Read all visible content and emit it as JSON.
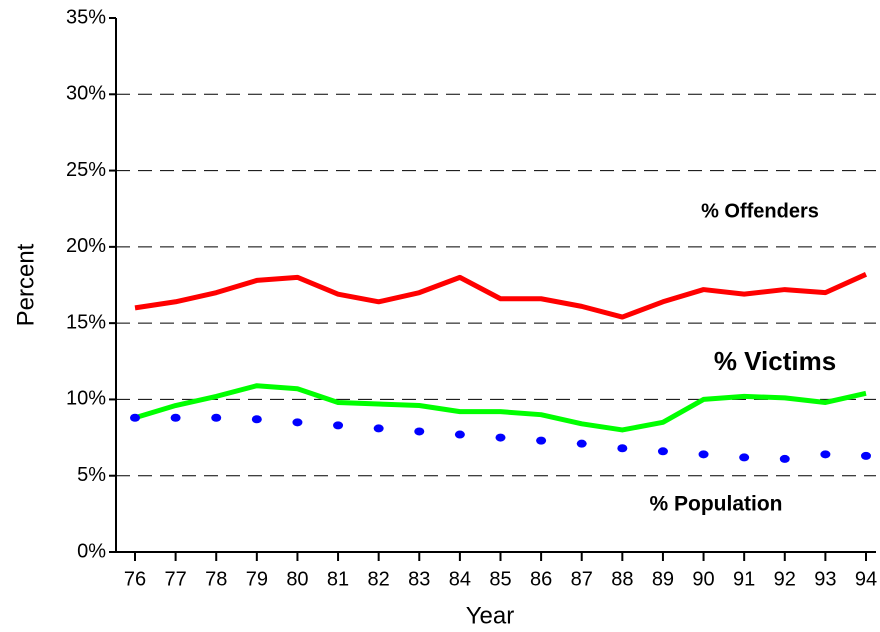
{
  "chart_data": {
    "type": "line",
    "xlabel": "Year",
    "ylabel": "Percent",
    "categories": [
      "76",
      "77",
      "78",
      "79",
      "80",
      "81",
      "82",
      "83",
      "84",
      "85",
      "86",
      "87",
      "88",
      "89",
      "90",
      "91",
      "92",
      "93",
      "94"
    ],
    "series": [
      {
        "name": "% Offenders",
        "color": "#ff0000",
        "line_style": "solid",
        "values": [
          16.0,
          16.4,
          17.0,
          17.8,
          18.0,
          16.9,
          16.4,
          17.0,
          18.0,
          16.6,
          16.6,
          16.1,
          15.4,
          16.4,
          17.2,
          16.9,
          17.2,
          17.0,
          18.2
        ]
      },
      {
        "name": "% Victims",
        "color": "#00ff00",
        "line_style": "solid",
        "values": [
          8.8,
          9.6,
          10.2,
          10.9,
          10.7,
          9.8,
          9.7,
          9.6,
          9.2,
          9.2,
          9.0,
          8.4,
          8.0,
          8.5,
          10.0,
          10.2,
          10.1,
          9.8,
          10.4
        ]
      },
      {
        "name": "% Population",
        "color": "#0000ff",
        "line_style": "dotted",
        "values": [
          8.8,
          8.8,
          8.8,
          8.7,
          8.5,
          8.3,
          8.1,
          7.9,
          7.7,
          7.5,
          7.3,
          7.1,
          6.8,
          6.6,
          6.4,
          6.2,
          6.1,
          6.4,
          6.3
        ]
      }
    ],
    "ylim": [
      0,
      35
    ],
    "yticks": [
      {
        "value": 0,
        "label": "0%"
      },
      {
        "value": 5,
        "label": "5%"
      },
      {
        "value": 10,
        "label": "10%"
      },
      {
        "value": 15,
        "label": "15%"
      },
      {
        "value": 20,
        "label": "20%"
      },
      {
        "value": 25,
        "label": "25%"
      },
      {
        "value": 30,
        "label": "30%"
      },
      {
        "value": 35,
        "label": "35%"
      }
    ],
    "grid": true
  }
}
